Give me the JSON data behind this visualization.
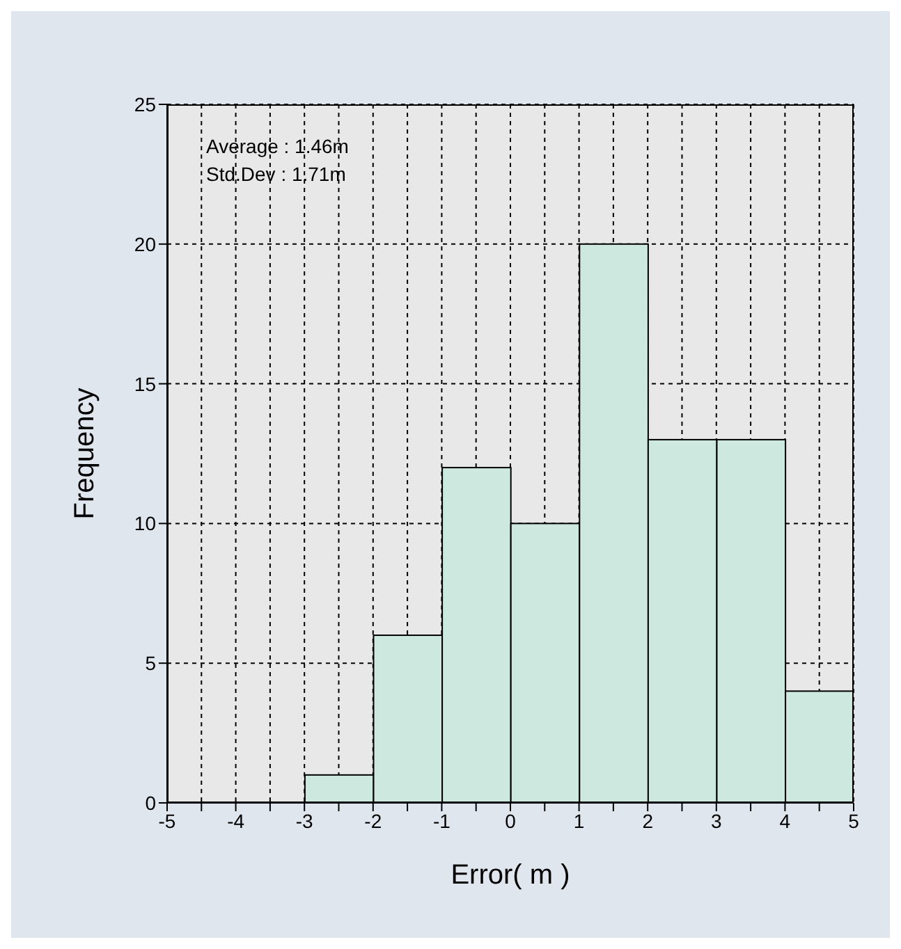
{
  "chart_data": {
    "type": "histogram",
    "xlabel": "Error( m )",
    "ylabel": "Frequency",
    "annotations": [
      "Average : 1.46m",
      "Std.Dev : 1.71m"
    ],
    "bins": [
      -5,
      -4,
      -3,
      -2,
      -1,
      0,
      1,
      2,
      3,
      4,
      5
    ],
    "values": [
      0,
      0,
      1,
      6,
      12,
      10,
      20,
      13,
      13,
      4
    ],
    "color": "#cce8df",
    "xlim": [
      -5,
      5
    ],
    "xticks": [
      -5,
      {
        "value": -4.5,
        "label": null
      },
      -4,
      {
        "value": -3.5,
        "label": null
      },
      -3,
      {
        "value": -2.5,
        "label": null
      },
      -2,
      {
        "value": -1.5,
        "label": null
      },
      -1,
      {
        "value": -0.5,
        "label": null
      },
      0,
      {
        "value": 0.5,
        "label": null
      },
      1,
      {
        "value": 1.5,
        "label": null
      },
      2,
      {
        "value": 2.5,
        "label": null
      },
      3,
      {
        "value": 3.5,
        "label": null
      },
      4,
      {
        "value": 4.5,
        "label": null
      },
      5
    ],
    "ylim": [
      0,
      25
    ],
    "yticks": [
      0,
      5,
      10,
      15,
      20,
      25
    ],
    "grid": true
  }
}
